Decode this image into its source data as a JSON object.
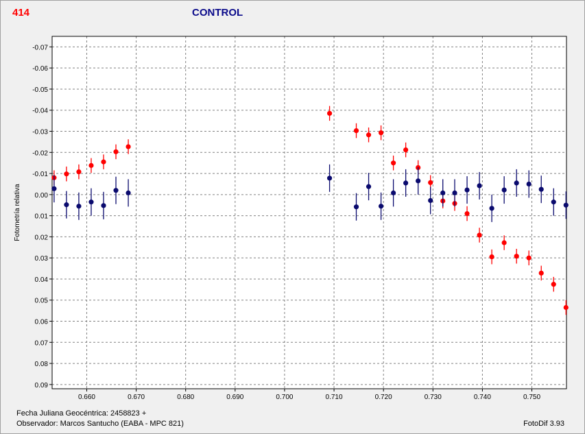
{
  "header": {
    "id": "414",
    "title": "CONTROL"
  },
  "footer": {
    "line1": "Fecha Juliana Geocéntrica: 2458823 +",
    "line2": "Observador: Marcos Santucho (EABA - MPC 821)",
    "software": "FotoDif 3.93"
  },
  "colors": {
    "red_series": "#ff0000",
    "blue_series": "#0a0a6e",
    "grid": "#808080"
  },
  "chart_data": {
    "type": "scatter",
    "title": "CONTROL",
    "ylabel": "Fotometría relativa",
    "xlabel": "",
    "xlim": [
      0.653,
      0.757
    ],
    "ylim": [
      -0.075,
      0.092
    ],
    "y_inverted": true,
    "grid": true,
    "x_ticks": [
      0.66,
      0.67,
      0.68,
      0.69,
      0.7,
      0.71,
      0.72,
      0.73,
      0.74,
      0.75
    ],
    "x_tick_labels": [
      "0.660",
      "0.670",
      "0.680",
      "0.690",
      "0.700",
      "0.710",
      "0.720",
      "0.730",
      "0.740",
      "0.750"
    ],
    "y_ticks": [
      -0.07,
      -0.06,
      -0.05,
      -0.04,
      -0.03,
      -0.02,
      -0.01,
      0.0,
      0.01,
      0.02,
      0.03,
      0.04,
      0.05,
      0.06,
      0.07,
      0.08,
      0.09
    ],
    "y_tick_labels": [
      "-0.07",
      "-0.06",
      "-0.05",
      "-0.04",
      "-0.03",
      "-0.02",
      "-0.01",
      "0.00",
      "0.01",
      "0.02",
      "0.03",
      "0.04",
      "0.05",
      "0.06",
      "0.07",
      "0.08",
      "0.09"
    ],
    "series": [
      {
        "color": "red",
        "err": 0.0035,
        "x": [
          0.6534,
          0.6559,
          0.6584,
          0.6609,
          0.6634,
          0.6659,
          0.6684,
          0.7091,
          0.7145,
          0.717,
          0.7195,
          0.722,
          0.7245,
          0.727,
          0.7295,
          0.732,
          0.7344,
          0.7369,
          0.7394,
          0.7419,
          0.7444,
          0.7469,
          0.7494,
          0.7519,
          0.7544,
          0.7569
        ],
        "y": [
          -0.008,
          -0.0098,
          -0.0108,
          -0.0138,
          -0.0155,
          -0.0203,
          -0.0227,
          -0.0385,
          -0.0303,
          -0.0283,
          -0.0293,
          -0.015,
          -0.0212,
          -0.0128,
          -0.0057,
          0.003,
          0.0042,
          0.009,
          0.0192,
          0.0295,
          0.0228,
          0.0292,
          0.03,
          0.0372,
          0.0425,
          0.0535
        ]
      },
      {
        "color": "blue",
        "err": 0.0065,
        "x": [
          0.6534,
          0.6559,
          0.6584,
          0.6609,
          0.6634,
          0.6659,
          0.6684,
          0.7091,
          0.7145,
          0.717,
          0.7195,
          0.722,
          0.7245,
          0.727,
          0.7295,
          0.732,
          0.7344,
          0.7369,
          0.7394,
          0.7419,
          0.7444,
          0.7469,
          0.7494,
          0.7519,
          0.7544,
          0.7569
        ],
        "y": [
          -0.0028,
          0.0048,
          0.0055,
          0.0035,
          0.0052,
          -0.002,
          -0.0008,
          -0.0078,
          0.0058,
          -0.0038,
          0.0055,
          -0.0008,
          -0.0055,
          -0.0065,
          0.0028,
          -0.0008,
          -0.0008,
          -0.0022,
          -0.0042,
          0.0065,
          -0.0022,
          -0.0055,
          -0.005,
          -0.0025,
          0.0035,
          0.005
        ]
      }
    ]
  }
}
